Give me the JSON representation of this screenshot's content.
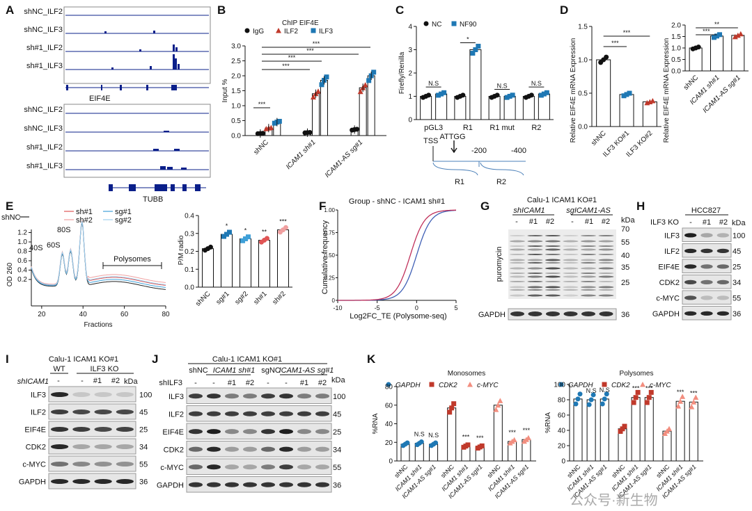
{
  "panel_letters": [
    "A",
    "B",
    "C",
    "D",
    "E",
    "F",
    "G",
    "H",
    "I",
    "J",
    "K"
  ],
  "colors": {
    "ilf2": "#c0392b",
    "ilf3": "#1f78b4",
    "track": "#0a1f8a",
    "cdk2": "#c0392b",
    "cmyc": "#f28e7f",
    "gapdh": "#1f78b4",
    "sh1": "#e05555",
    "sh2": "#f0a0a0",
    "sg1": "#3fa0d8",
    "sg2": "#9fd0ee"
  },
  "A": {
    "tracks1": [
      "shNC_ILF2",
      "shNC_ILF3",
      "sh#1_ILF2",
      "sh#1_ILF3"
    ],
    "gene1": "EIF4E",
    "tracks2": [
      "shNC_ILF2",
      "shNC_ILF3",
      "sh#1_ILF2",
      "sh#1_ILF3"
    ],
    "gene2": "TUBB"
  },
  "chart_data": [
    {
      "panel": "B",
      "type": "bar",
      "title": "ChIP EIF4E",
      "ylabel": "Input %",
      "ylim": [
        0,
        3.0
      ],
      "yticks": [
        "0.0",
        "0.5",
        "1.0",
        "1.5",
        "2.0",
        "2.5",
        "3.0"
      ],
      "legend": [
        "IgG",
        "ILF2",
        "ILF3"
      ],
      "categories": [
        "shNC",
        "ICAM1 sh#1",
        "ICAM1-AS sg#1"
      ],
      "series": [
        {
          "name": "IgG",
          "values": [
            0.07,
            0.1,
            0.2
          ]
        },
        {
          "name": "ILF2",
          "values": [
            0.25,
            1.4,
            1.6
          ]
        },
        {
          "name": "ILF3",
          "values": [
            0.45,
            1.85,
            2.0
          ]
        }
      ],
      "sig": [
        "***",
        "***",
        "***",
        "***",
        "***"
      ]
    },
    {
      "panel": "C",
      "type": "bar",
      "ylabel": "Firefly/Renilla",
      "ylim": [
        0,
        4
      ],
      "yticks": [
        "0",
        "1",
        "2",
        "3",
        "4"
      ],
      "legend": [
        "NC",
        "NF90"
      ],
      "categories": [
        "pGL3",
        "R1",
        "R1 mut",
        "R2"
      ],
      "series": [
        {
          "name": "NC",
          "values": [
            1.0,
            1.0,
            1.0,
            1.0
          ]
        },
        {
          "name": "NF90",
          "values": [
            1.1,
            3.0,
            1.0,
            1.1
          ]
        }
      ],
      "sig": [
        "N.S",
        "*",
        "N.S",
        "N.S"
      ],
      "promoter": {
        "tss": "TSS",
        "motif": "ATTGG",
        "ticks": [
          "-200",
          "-400"
        ],
        "regions": [
          "R1",
          "R2"
        ]
      }
    },
    {
      "panel": "D1",
      "type": "bar",
      "ylabel": "Relative EIF4E mRNA Expression",
      "ylim": [
        0,
        1.5
      ],
      "yticks": [
        "0.0",
        "0.5",
        "1.0",
        "1.5"
      ],
      "categories": [
        "shNC",
        "ILF3 KO#1",
        "ILF3 KO#2"
      ],
      "values": [
        1.0,
        0.48,
        0.37
      ],
      "sig": [
        "***",
        "***"
      ]
    },
    {
      "panel": "D2",
      "type": "bar",
      "ylabel": "Relative EIF4E mRNA Expression",
      "ylim": [
        0,
        2.0
      ],
      "yticks": [
        "0.0",
        "0.5",
        "1.0",
        "1.5",
        "2.0"
      ],
      "categories": [
        "shNC",
        "ICAM1 sh#1",
        "ICAM1-AS sg#1"
      ],
      "values": [
        1.0,
        1.52,
        1.55
      ],
      "sig": [
        "***",
        "**"
      ]
    },
    {
      "panel": "E1",
      "type": "line",
      "xlabel": "Fractions",
      "ylabel": "OD 260",
      "xlim": [
        15,
        80
      ],
      "xticks": [
        "20",
        "40",
        "60",
        "80"
      ],
      "yticks": [
        "0.2",
        "0.4",
        "0.6",
        "0.8",
        "1.0",
        "1.2"
      ],
      "legend": [
        "shNC",
        "sh#1",
        "sh#2",
        "sg#1",
        "sg#2"
      ],
      "peaks": [
        "40S",
        "60S",
        "80S"
      ],
      "region": "Polysomes"
    },
    {
      "panel": "E2",
      "type": "bar",
      "ylabel": "P/M radio",
      "ylim": [
        0,
        0.4
      ],
      "yticks": [
        "0.0",
        "0.1",
        "0.2",
        "0.3",
        "0.4"
      ],
      "categories": [
        "shNC",
        "sg#1",
        "sg#2",
        "sh#1",
        "sh#2"
      ],
      "values": [
        0.215,
        0.295,
        0.27,
        0.262,
        0.32
      ],
      "sig": [
        "*",
        "*",
        "**",
        "***"
      ]
    },
    {
      "panel": "F",
      "type": "line",
      "title": "Group - shNC - ICAM1 sh#1",
      "xlabel": "Log2FC_TE (Polysome-seq)",
      "ylabel": "Cumulative frequency",
      "xlim": [
        -10,
        5
      ],
      "ylim": [
        0,
        1
      ],
      "xticks": [
        "-10",
        "-5",
        "0",
        "5"
      ],
      "yticks": [
        "0",
        "0.25",
        "0.50",
        "0.75",
        "1.00"
      ],
      "series": [
        {
          "name": "shNC",
          "center": 0.0
        },
        {
          "name": "ICAM1 sh#1",
          "center": -0.8
        }
      ]
    },
    {
      "panel": "K1",
      "type": "bar",
      "title": "Monosomes",
      "ylabel": "%RNA",
      "ylim": [
        0,
        80
      ],
      "yticks": [
        "0",
        "20",
        "40",
        "60",
        "80"
      ],
      "legend": [
        "GAPDH",
        "CDK2",
        "c-MYC"
      ],
      "categories": [
        "shNC",
        "ICAM1 sh#1",
        "ICAM1-AS sg#1"
      ],
      "series": [
        {
          "name": "GAPDH",
          "values": [
            18,
            19,
            18
          ]
        },
        {
          "name": "CDK2",
          "values": [
            57,
            16,
            15
          ]
        },
        {
          "name": "c-MYC",
          "values": [
            60,
            21,
            23
          ]
        }
      ],
      "sig": [
        "N.S",
        "N.S",
        "***",
        "***",
        "***",
        "***"
      ]
    },
    {
      "panel": "K2",
      "type": "bar",
      "title": "Polysomes",
      "ylabel": "%RNA",
      "ylim": [
        0,
        100
      ],
      "yticks": [
        "0",
        "20",
        "40",
        "60",
        "80",
        "100"
      ],
      "legend": [
        "GAPDH",
        "CDK2",
        "c-MYC"
      ],
      "categories": [
        "shNC",
        "ICAM1 sh#1",
        "ICAM1-AS sg#1"
      ],
      "series": [
        {
          "name": "GAPDH",
          "values": [
            81,
            80,
            81
          ]
        },
        {
          "name": "CDK2",
          "values": [
            42,
            83,
            83
          ]
        },
        {
          "name": "c-MYC",
          "values": [
            39,
            78,
            77
          ]
        }
      ],
      "sig": [
        "N.S",
        "N.S",
        "***",
        "***",
        "***",
        "***"
      ]
    }
  ],
  "G": {
    "title": "Calu-1 ICAM1 KO#1",
    "groups": [
      "shICAM1",
      "sgICAM1-AS"
    ],
    "lanes": [
      "-",
      "#1",
      "#2",
      "-",
      "#1",
      "#2"
    ],
    "blot": "puromycin",
    "loading": "GAPDH",
    "kda_label": "kDa",
    "kda": [
      "70",
      "55",
      "40",
      "35",
      "25"
    ],
    "loading_kda": "36"
  },
  "H": {
    "title": "HCC827",
    "cond": "ILF3 KO",
    "lanes": [
      "-",
      "#1",
      "#2"
    ],
    "kda_label": "kDa",
    "rows": [
      {
        "label": "ILF3",
        "kda": "100",
        "ints": [
          0.95,
          0.3,
          0.25
        ]
      },
      {
        "label": "ILF2",
        "kda": "45",
        "ints": [
          0.9,
          0.85,
          0.85
        ]
      },
      {
        "label": "EIF4E",
        "kda": "25",
        "ints": [
          0.9,
          0.55,
          0.6
        ]
      },
      {
        "label": "CDK2",
        "kda": "34",
        "ints": [
          0.75,
          0.55,
          0.6
        ]
      },
      {
        "label": "c-MYC",
        "kda": "55",
        "ints": [
          0.7,
          0.2,
          0.2
        ]
      },
      {
        "label": "GAPDH",
        "kda": "36",
        "ints": [
          0.9,
          0.9,
          0.9
        ]
      }
    ]
  },
  "I": {
    "title": "Calu-1 ICAM1 KO#1",
    "groups": [
      "WT",
      "ILF3 KO"
    ],
    "cond": "shICAM1",
    "lanes": [
      "-",
      "-",
      "#1",
      "#2"
    ],
    "kda_label": "kDa",
    "rows": [
      {
        "label": "ILF3",
        "kda": "100",
        "ints": [
          0.9,
          0.15,
          0.15,
          0.15
        ]
      },
      {
        "label": "ILF2",
        "kda": "45",
        "ints": [
          0.8,
          0.75,
          0.75,
          0.75
        ]
      },
      {
        "label": "EIF4E",
        "kda": "25",
        "ints": [
          0.85,
          0.8,
          0.75,
          0.78
        ]
      },
      {
        "label": "CDK2",
        "kda": "34",
        "ints": [
          0.9,
          0.3,
          0.3,
          0.3
        ]
      },
      {
        "label": "c-MYC",
        "kda": "55",
        "ints": [
          0.55,
          0.45,
          0.4,
          0.4
        ]
      },
      {
        "label": "GAPDH",
        "kda": "36",
        "ints": [
          0.9,
          0.9,
          0.9,
          0.9
        ]
      }
    ]
  },
  "J": {
    "title": "Calu-1 ICAM1 KO#1",
    "groups": [
      "shNC",
      "ICAM1 sh#1",
      "sgNC",
      "ICAM1-AS sg#1"
    ],
    "cond": "shILF3",
    "lanes": [
      "-",
      "-",
      "#1",
      "#2",
      "-",
      "-",
      "#1",
      "#2"
    ],
    "kda_label": "kDa",
    "rows": [
      {
        "label": "ILF3",
        "kda": "100",
        "ints": [
          0.8,
          0.85,
          0.5,
          0.5,
          0.8,
          0.85,
          0.5,
          0.5
        ]
      },
      {
        "label": "ILF2",
        "kda": "45",
        "ints": [
          0.8,
          0.8,
          0.8,
          0.8,
          0.8,
          0.8,
          0.8,
          0.8
        ]
      },
      {
        "label": "EIF4E",
        "kda": "25",
        "ints": [
          0.85,
          0.95,
          0.45,
          0.45,
          0.85,
          0.95,
          0.45,
          0.45
        ]
      },
      {
        "label": "CDK2",
        "kda": "34",
        "ints": [
          0.6,
          0.9,
          0.35,
          0.35,
          0.6,
          0.9,
          0.35,
          0.35
        ]
      },
      {
        "label": "c-MYC",
        "kda": "55",
        "ints": [
          0.6,
          0.9,
          0.3,
          0.3,
          0.5,
          0.8,
          0.3,
          0.3
        ]
      },
      {
        "label": "GAPDH",
        "kda": "36",
        "ints": [
          0.85,
          0.85,
          0.85,
          0.85,
          0.85,
          0.85,
          0.85,
          0.85
        ]
      }
    ]
  },
  "watermark": "公众号·新生物"
}
